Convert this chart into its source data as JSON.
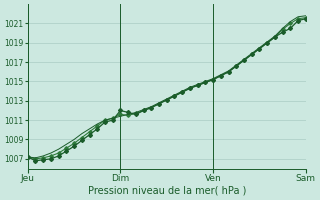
{
  "background_color": "#cce8e0",
  "grid_color": "#aaccC4",
  "line_color_dark": "#1a5c2a",
  "line_color_mid": "#2d7a3a",
  "xlabel": "Pression niveau de la mer( hPa )",
  "ylim": [
    1006.0,
    1023.0
  ],
  "yticks": [
    1007,
    1009,
    1011,
    1013,
    1015,
    1017,
    1019,
    1021
  ],
  "day_labels": [
    "Jeu",
    "Dim",
    "Ven",
    "Sam"
  ],
  "day_positions": [
    0.0,
    0.333,
    0.667,
    1.0
  ],
  "n_points": 37,
  "series_main": [
    1007.2,
    1006.8,
    1006.9,
    1007.0,
    1007.3,
    1007.8,
    1008.3,
    1008.9,
    1009.5,
    1010.1,
    1010.8,
    1011.0,
    1012.0,
    1011.8,
    1011.6,
    1012.0,
    1012.3,
    1012.7,
    1013.1,
    1013.5,
    1013.9,
    1014.3,
    1014.6,
    1014.9,
    1015.2,
    1015.6,
    1016.0,
    1016.6,
    1017.2,
    1017.8,
    1018.4,
    1019.0,
    1019.6,
    1020.1,
    1020.5,
    1021.3,
    1021.5
  ],
  "series_upper": [
    1007.2,
    1007.0,
    1007.1,
    1007.3,
    1007.6,
    1008.1,
    1008.6,
    1009.2,
    1009.8,
    1010.4,
    1011.0,
    1011.2,
    1011.6,
    1011.5,
    1011.7,
    1012.0,
    1012.3,
    1012.7,
    1013.1,
    1013.5,
    1013.9,
    1014.3,
    1014.6,
    1014.9,
    1015.2,
    1015.6,
    1016.0,
    1016.6,
    1017.2,
    1017.8,
    1018.4,
    1019.0,
    1019.6,
    1020.4,
    1021.0,
    1021.5,
    1021.6
  ],
  "series_lower": [
    1007.2,
    1007.1,
    1007.3,
    1007.6,
    1008.0,
    1008.5,
    1009.0,
    1009.6,
    1010.1,
    1010.6,
    1011.0,
    1011.2,
    1011.4,
    1011.6,
    1011.8,
    1012.1,
    1012.4,
    1012.8,
    1013.2,
    1013.6,
    1014.0,
    1014.4,
    1014.7,
    1015.0,
    1015.3,
    1015.7,
    1016.1,
    1016.7,
    1017.3,
    1017.9,
    1018.5,
    1019.1,
    1019.7,
    1020.5,
    1021.2,
    1021.7,
    1021.8
  ]
}
